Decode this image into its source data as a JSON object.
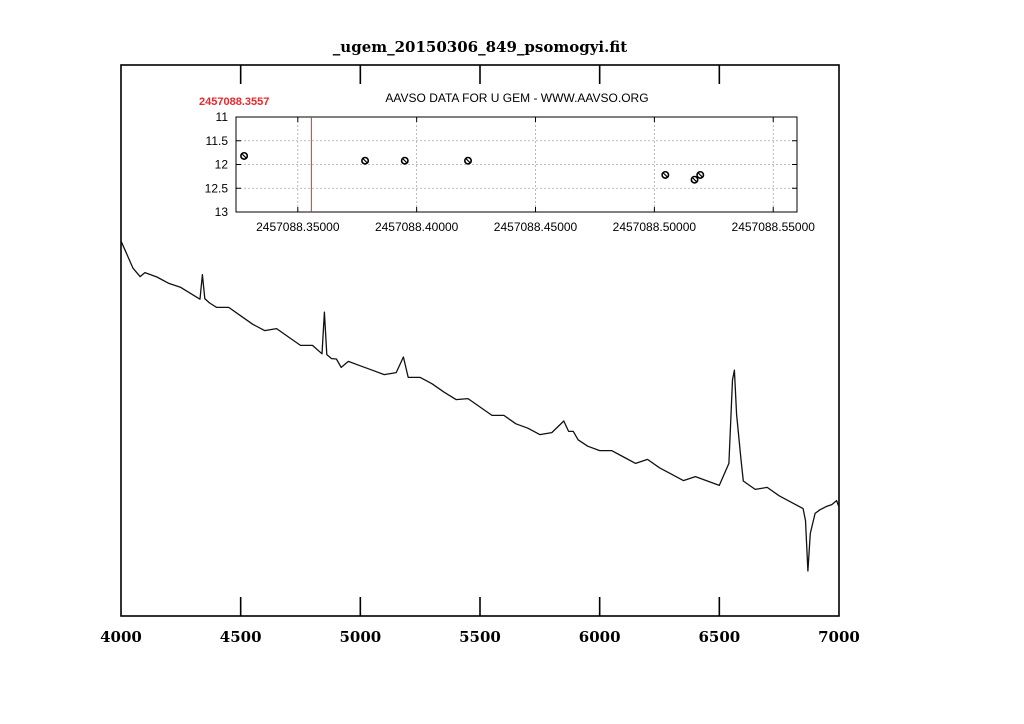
{
  "chart_data": [
    {
      "type": "line",
      "title": "_ugem_20150306_849_psomogyi.fit",
      "xlim": [
        4000,
        7000
      ],
      "x_ticks": [
        4000,
        4500,
        5000,
        5500,
        6000,
        6500,
        7000
      ],
      "x_tick_labels": [
        "4000",
        "4500",
        "5000",
        "5500",
        "6000",
        "6500",
        "7000"
      ],
      "grid": false,
      "series": [
        {
          "x": [
            4000,
            4020,
            4050,
            4080,
            4100,
            4150,
            4200,
            4250,
            4300,
            4330,
            4340,
            4350,
            4370,
            4400,
            4450,
            4500,
            4550,
            4600,
            4650,
            4700,
            4750,
            4800,
            4840,
            4850,
            4860,
            4880,
            4900,
            4920,
            4950,
            5000,
            5050,
            5100,
            5150,
            5180,
            5200,
            5250,
            5300,
            5350,
            5400,
            5450,
            5500,
            5550,
            5600,
            5650,
            5700,
            5750,
            5800,
            5850,
            5870,
            5890,
            5910,
            5950,
            6000,
            6050,
            6100,
            6150,
            6200,
            6250,
            6300,
            6350,
            6400,
            6450,
            6500,
            6540,
            6555,
            6563,
            6572,
            6590,
            6600,
            6650,
            6700,
            6750,
            6800,
            6850,
            6860,
            6870,
            6880,
            6900,
            6920,
            6950,
            6970,
            6990,
            7000
          ],
          "y": [
            0.0,
            0.12,
            0.26,
            0.32,
            0.34,
            0.36,
            0.4,
            0.5,
            0.55,
            0.57,
            0.3,
            0.6,
            0.62,
            0.64,
            0.7,
            0.76,
            0.82,
            0.86,
            0.9,
            0.96,
            1.02,
            1.08,
            1.14,
            0.7,
            1.1,
            1.2,
            1.18,
            1.24,
            1.24,
            1.26,
            1.28,
            1.3,
            1.34,
            1.16,
            1.34,
            1.4,
            1.44,
            1.5,
            1.55,
            1.6,
            1.66,
            1.72,
            1.78,
            1.84,
            1.86,
            1.9,
            1.94,
            1.8,
            1.88,
            1.94,
            2.0,
            2.04,
            2.06,
            2.12,
            2.16,
            2.2,
            2.22,
            2.28,
            2.32,
            2.36,
            2.38,
            2.4,
            2.42,
            2.26,
            1.4,
            1.28,
            1.7,
            2.2,
            2.4,
            2.46,
            2.5,
            2.56,
            2.6,
            2.64,
            2.82,
            3.3,
            2.9,
            2.76,
            2.7,
            2.64,
            2.6,
            2.62,
            2.66
          ]
        }
      ]
    },
    {
      "type": "scatter",
      "title": "AAVSO DATA FOR U GEM - WWW.AAVSO.ORG",
      "xlim": [
        2457088.324,
        2457088.56
      ],
      "ylim": [
        13,
        11
      ],
      "x_ticks": [
        2457088.35,
        2457088.4,
        2457088.45,
        2457088.5,
        2457088.55
      ],
      "x_tick_labels": [
        "2457088.35000",
        "2457088.40000",
        "2457088.45000",
        "2457088.50000",
        "2457088.55000"
      ],
      "y_ticks": [
        11,
        11.5,
        12,
        12.5,
        13
      ],
      "y_tick_labels": [
        "11",
        "11.5",
        "12",
        "12.5",
        "13"
      ],
      "grid": true,
      "marker_line": {
        "x": 2457088.3557,
        "label": "2457088.3557",
        "color": "#e8282b"
      },
      "series": [
        {
          "x": [
            2457088.3274,
            2457088.3783,
            2457088.395,
            2457088.4216,
            2457088.5046,
            2457088.5169,
            2457088.5193
          ],
          "y": [
            11.82,
            11.92,
            11.92,
            11.92,
            12.22,
            12.32,
            12.22
          ]
        }
      ]
    }
  ]
}
